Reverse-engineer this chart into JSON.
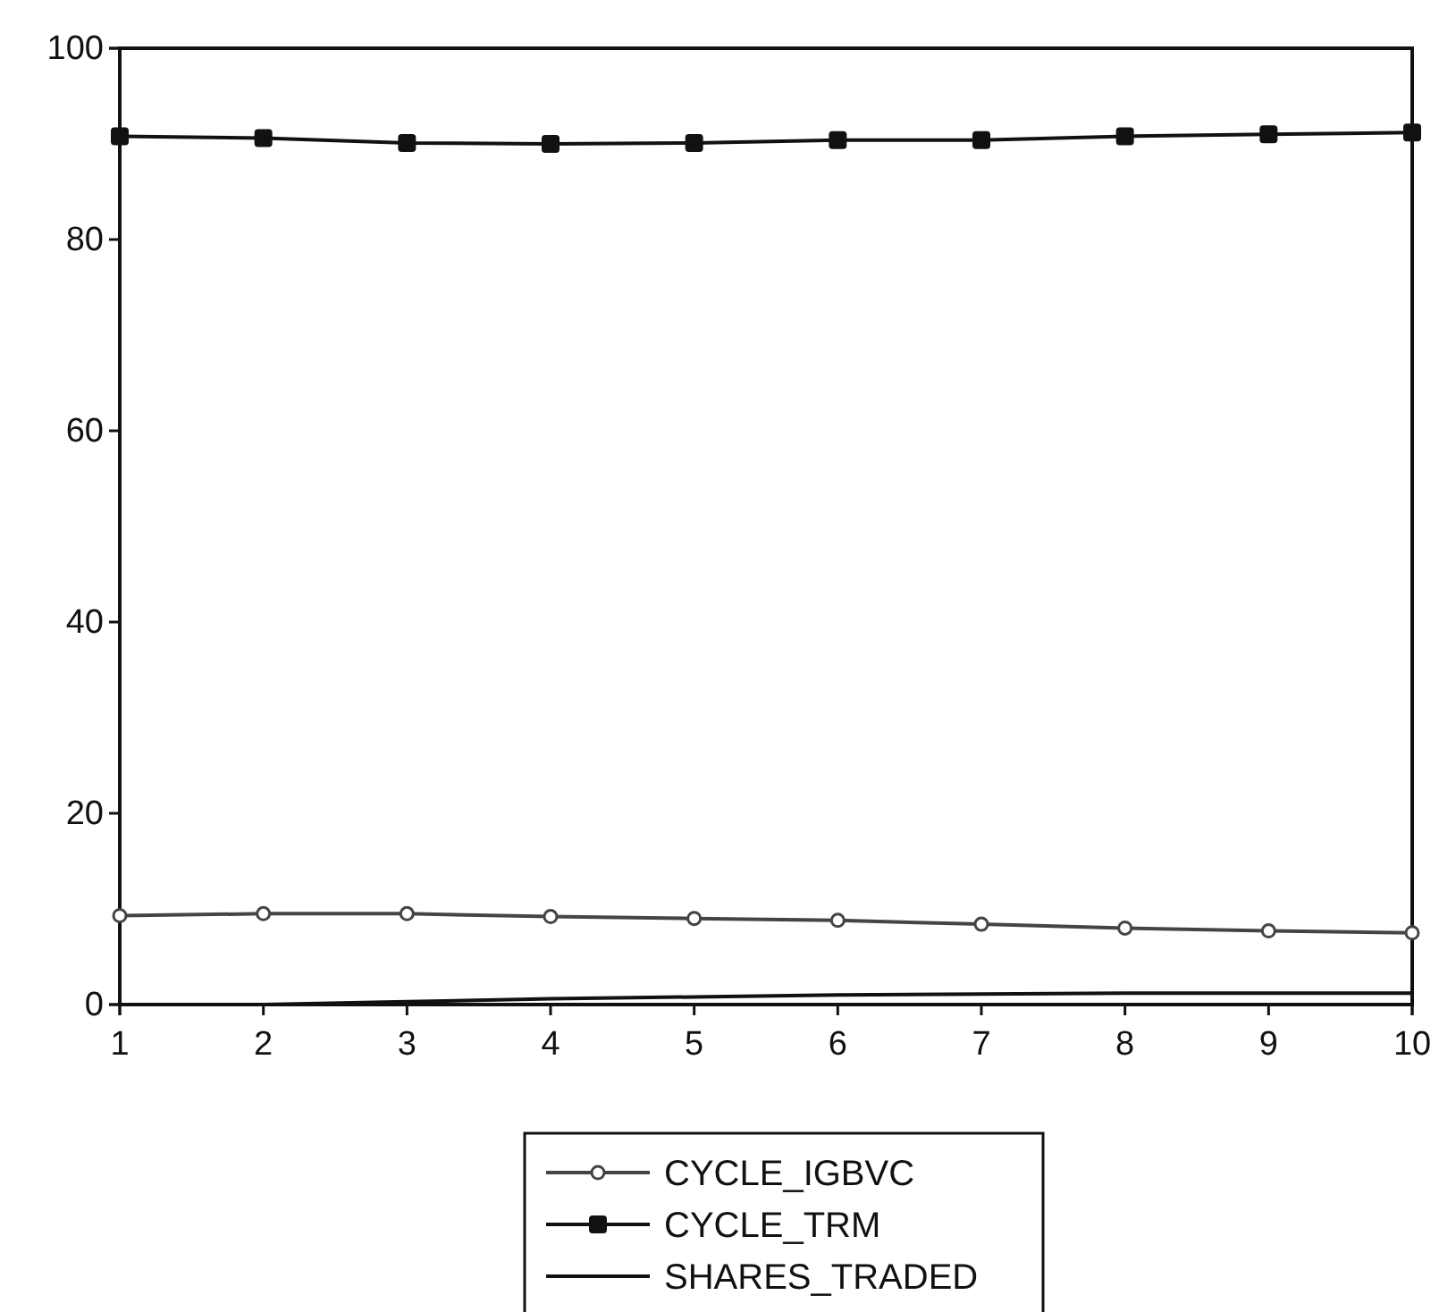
{
  "chart_data": {
    "type": "line",
    "x": [
      1,
      2,
      3,
      4,
      5,
      6,
      7,
      8,
      9,
      10
    ],
    "xlim": [
      1,
      10
    ],
    "xticks": [
      1,
      2,
      3,
      4,
      5,
      6,
      7,
      8,
      9,
      10
    ],
    "ylim": [
      0,
      100
    ],
    "yticks": [
      0,
      20,
      40,
      60,
      80,
      100
    ],
    "grid": false,
    "legend": "bottom",
    "series": [
      {
        "name": "CYCLE_IGBVC",
        "color": "#444444",
        "marker": "circle",
        "values": [
          9.3,
          9.5,
          9.5,
          9.2,
          9.0,
          8.8,
          8.4,
          8.0,
          7.7,
          7.5
        ]
      },
      {
        "name": "CYCLE_TRM",
        "color": "#111111",
        "marker": "square",
        "values": [
          90.8,
          90.6,
          90.1,
          90.0,
          90.1,
          90.4,
          90.4,
          90.8,
          91.0,
          91.2
        ]
      },
      {
        "name": "SHARES_TRADED",
        "color": "#111111",
        "marker": "none",
        "values": [
          0,
          0,
          0.3,
          0.6,
          0.8,
          1.0,
          1.1,
          1.2,
          1.2,
          1.2
        ]
      }
    ]
  }
}
